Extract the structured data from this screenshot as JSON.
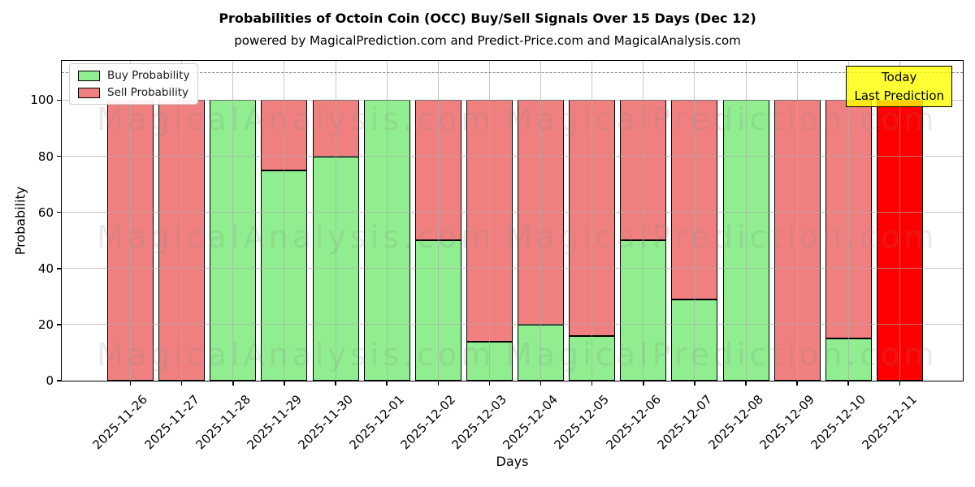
{
  "chart_data": {
    "type": "bar",
    "stacked": true,
    "title": "Probabilities of Octoin Coin (OCC) Buy/Sell Signals Over 15 Days (Dec 12)",
    "subtitle": "powered by MagicalPrediction.com and Predict-Price.com and MagicalAnalysis.com",
    "xlabel": "Days",
    "ylabel": "Probability",
    "ylim": [
      0,
      114
    ],
    "yticks": [
      0,
      20,
      40,
      60,
      80,
      100
    ],
    "grid": true,
    "legend_position": "upper-left",
    "categories": [
      "2025-11-26",
      "2025-11-27",
      "2025-11-28",
      "2025-11-29",
      "2025-11-30",
      "2025-12-01",
      "2025-12-02",
      "2025-12-03",
      "2025-12-04",
      "2025-12-05",
      "2025-12-06",
      "2025-12-07",
      "2025-12-08",
      "2025-12-09",
      "2025-12-10",
      "2025-12-11"
    ],
    "series": [
      {
        "name": "Buy Probability",
        "color": "#90ee90",
        "values": [
          0,
          0,
          100,
          75,
          80,
          100,
          50,
          14,
          20,
          16,
          50,
          29,
          100,
          0,
          15,
          0
        ]
      },
      {
        "name": "Sell Probability",
        "color": "#f08080",
        "values": [
          100,
          100,
          0,
          25,
          20,
          0,
          50,
          86,
          80,
          84,
          50,
          71,
          0,
          100,
          85,
          100
        ]
      }
    ],
    "bar_edge_color": "#000000",
    "threshold_line": {
      "y": 110,
      "style": "dashed",
      "color": "#7f7f7f"
    },
    "today_bar": {
      "index": 15,
      "color": "#ff0000"
    },
    "annotation_box": {
      "lines": [
        "Today",
        "Last Prediction"
      ],
      "bg_color": "#ffff00",
      "border_color": "#000000"
    },
    "watermarks": [
      "MagicalAnalysis.com",
      "MagicalPrediction.com"
    ]
  }
}
